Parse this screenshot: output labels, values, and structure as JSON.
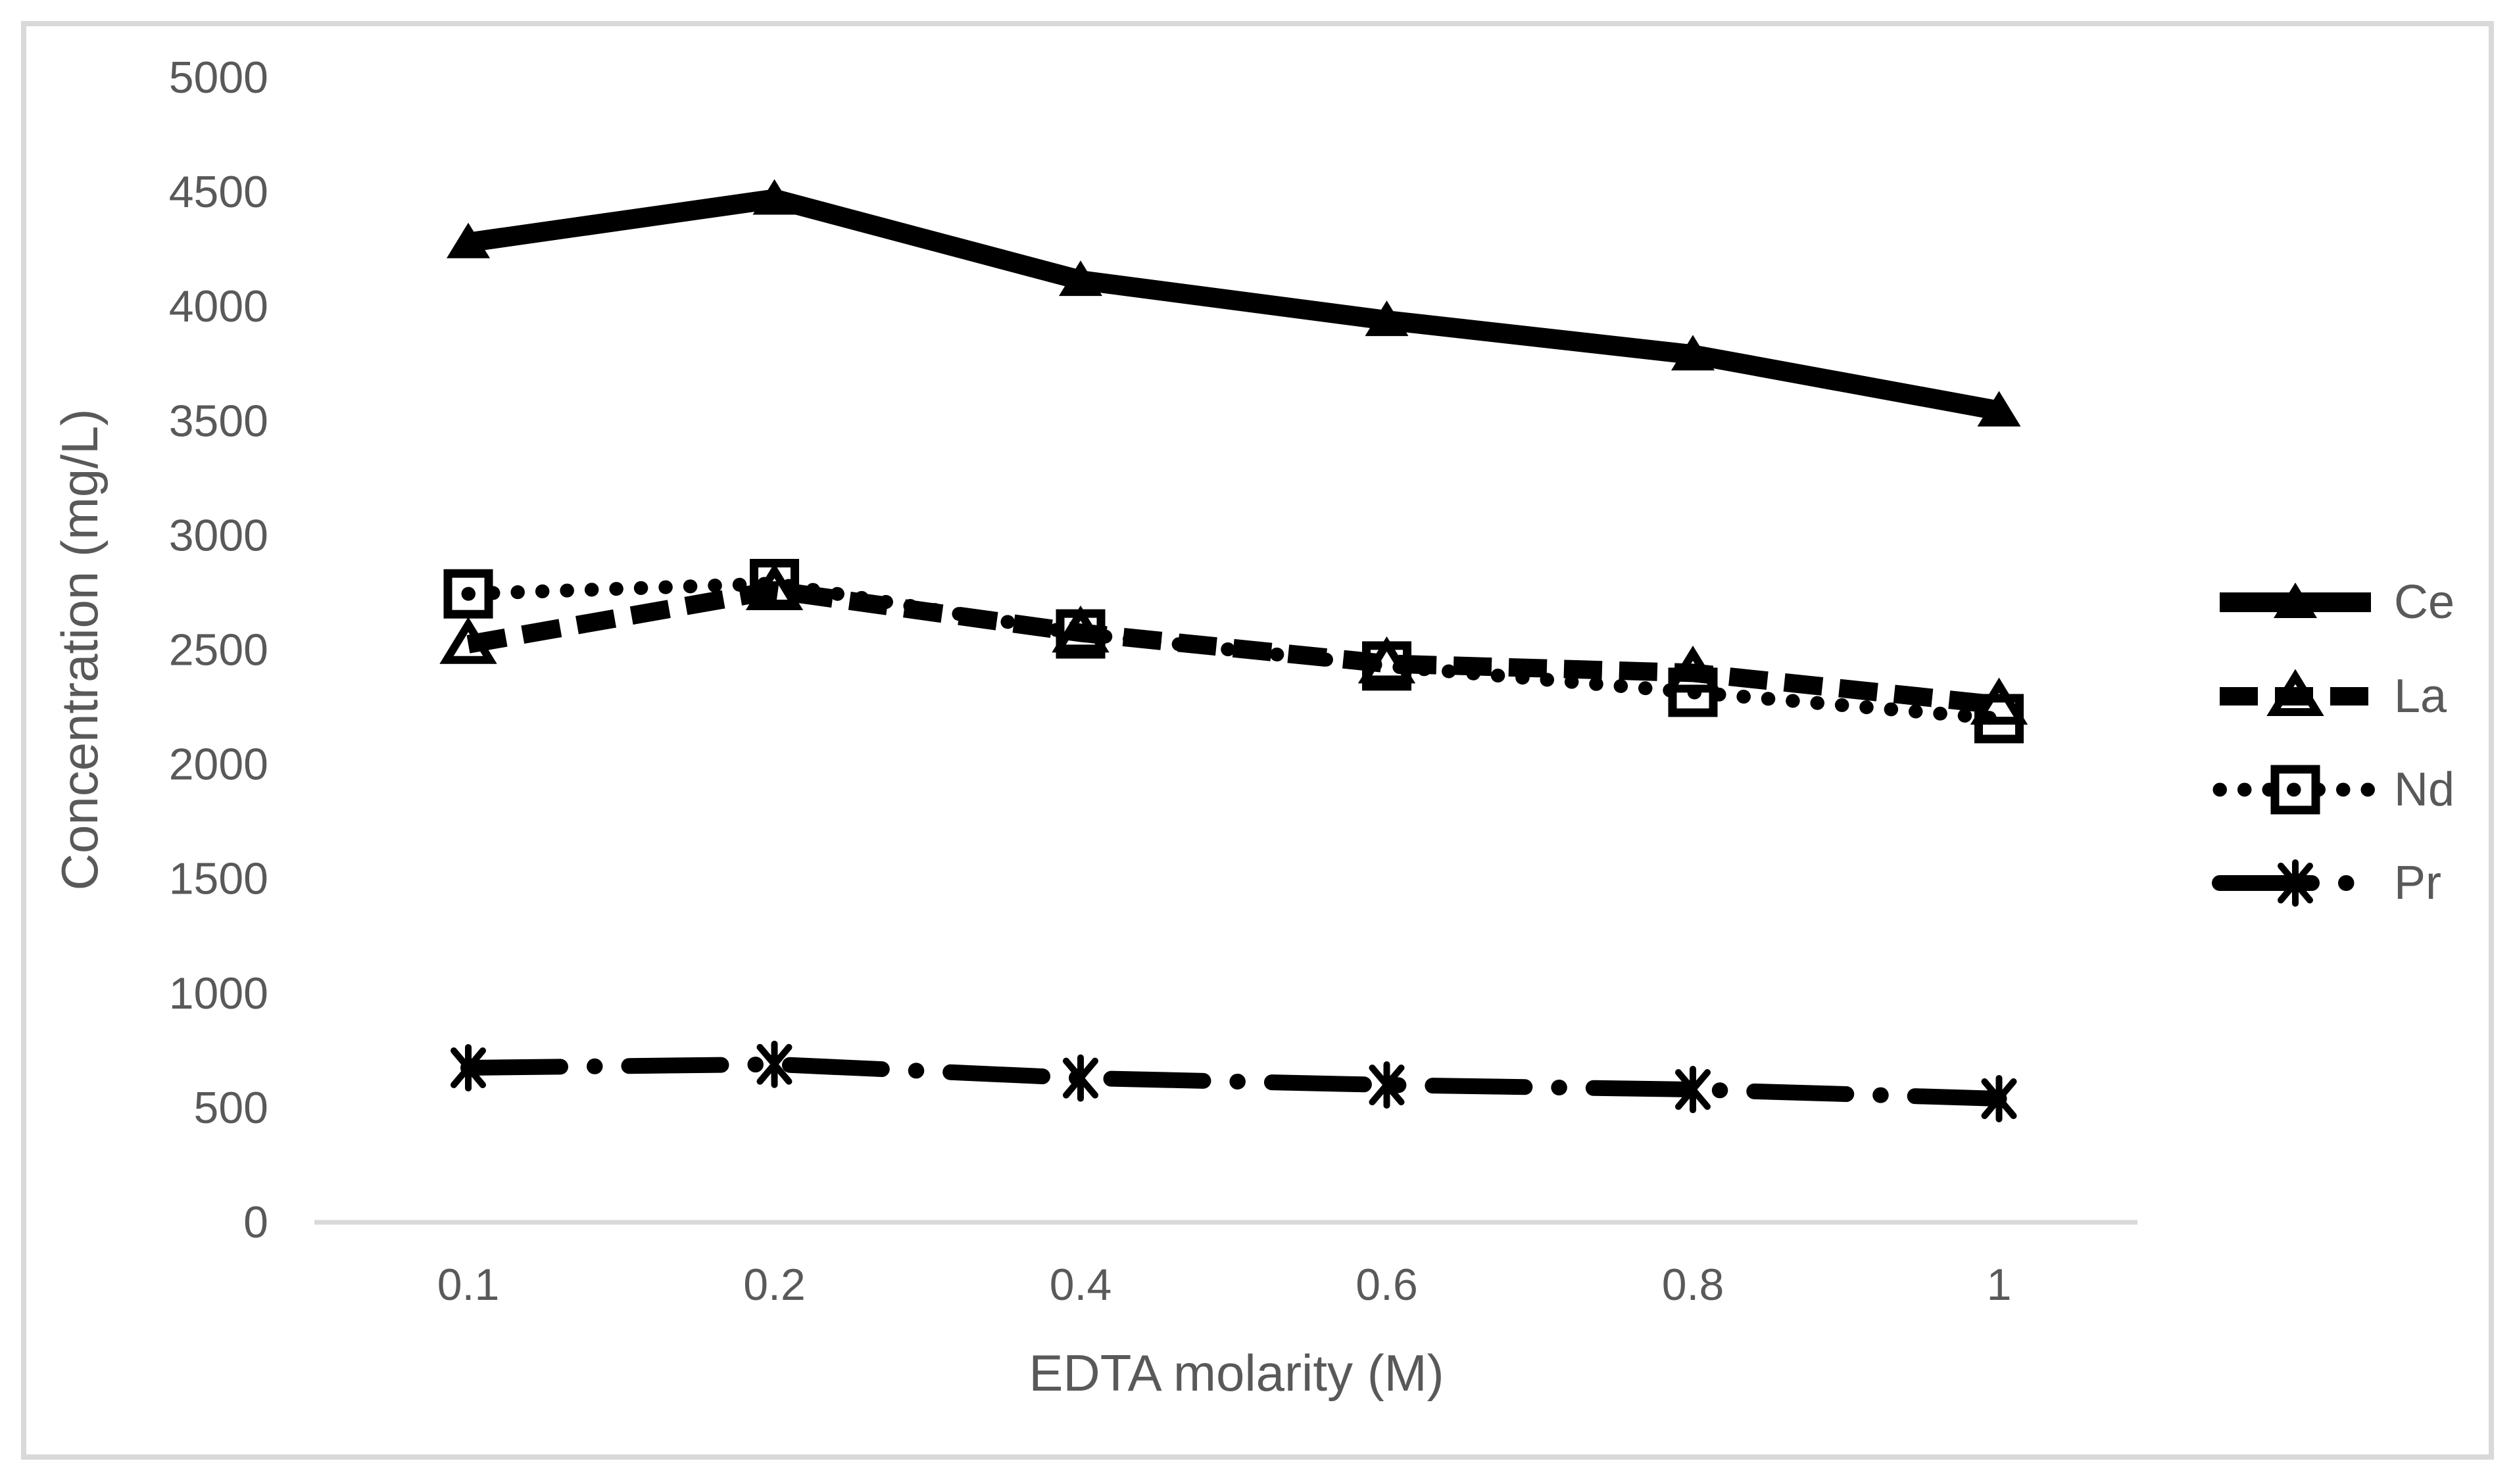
{
  "page": {
    "background": "#FFFFFF",
    "frame_border_color": "#D9D9D9"
  },
  "colors": {
    "series_color": "#000000",
    "text_color": "#595959",
    "axis_line_color": "#D9D9D9"
  },
  "chart_data": {
    "type": "line",
    "title": "",
    "xlabel": "EDTA molarity (M)",
    "ylabel": "Concentration (mg/L)",
    "categories": [
      "0.1",
      "0.2",
      "0.4",
      "0.6",
      "0.8",
      "1"
    ],
    "y_ticks": [
      0,
      500,
      1000,
      1500,
      2000,
      2500,
      3000,
      3500,
      4000,
      4500,
      5000
    ],
    "ylim": [
      0,
      5000
    ],
    "grid": false,
    "legend_position": "right",
    "series": [
      {
        "name": "Ce",
        "marker": "filled-triangle",
        "line": "solid",
        "values": [
          4280,
          4470,
          4115,
          3940,
          3790,
          3545
        ]
      },
      {
        "name": "La",
        "marker": "open-triangle",
        "line": "dashed",
        "values": [
          2525,
          2760,
          2575,
          2440,
          2400,
          2260
        ]
      },
      {
        "name": "Nd",
        "marker": "open-square",
        "line": "dotted",
        "values": [
          2745,
          2790,
          2570,
          2430,
          2315,
          2200
        ]
      },
      {
        "name": "Pr",
        "marker": "asterisk",
        "line": "dash-dot",
        "values": [
          675,
          690,
          630,
          600,
          580,
          540
        ]
      }
    ]
  }
}
